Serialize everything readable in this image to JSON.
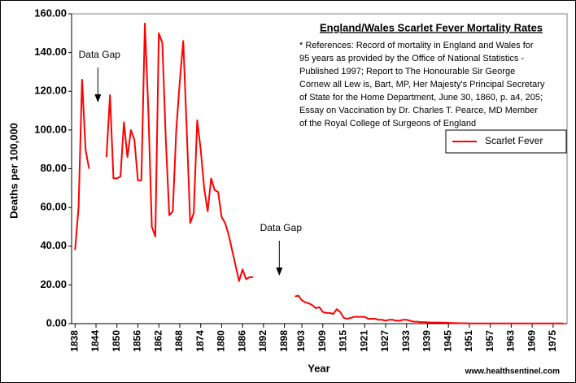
{
  "chart_data": {
    "type": "line",
    "title": "England/Wales Scarlet Fever Mortality Rates",
    "references": [
      "* References: Record of mortality in England and Wales for",
      "95 years as provided by the Office of National Statistics -",
      "Published 1997; Report to The Honourable Sir George",
      "Cornew all Lew is, Bart, MP, Her Majesty's Principal Secretary",
      "of State for the Home Department, June 30, 1860, p. a4, 205;",
      "Essay on Vaccination by Dr. Charles T. Pearce, MD Member",
      "of the Royal College of Surgeons of England"
    ],
    "annotations": [
      {
        "text": "Data Gap",
        "x": 1845
      },
      {
        "text": "Data Gap",
        "x": 1897
      }
    ],
    "x_label": "Year",
    "y_label": "Deaths per 100,000",
    "source": "www.healthsentinel.com",
    "legend": "right",
    "x": [
      1838,
      1839,
      1840,
      1841,
      1842,
      1843,
      1844,
      1845,
      1846,
      1847,
      1848,
      1849,
      1850,
      1851,
      1852,
      1853,
      1854,
      1855,
      1856,
      1857,
      1858,
      1859,
      1860,
      1861,
      1862,
      1863,
      1864,
      1865,
      1866,
      1867,
      1868,
      1869,
      1870,
      1871,
      1872,
      1873,
      1874,
      1875,
      1876,
      1877,
      1878,
      1879,
      1880,
      1881,
      1882,
      1883,
      1884,
      1885,
      1886,
      1887,
      1888,
      1889,
      1890,
      1891,
      1892,
      1893,
      1894,
      1895,
      1896,
      1897,
      1898,
      1899,
      1900,
      1901,
      1902,
      1903,
      1904,
      1905,
      1906,
      1907,
      1908,
      1909,
      1910,
      1911,
      1912,
      1913,
      1914,
      1915,
      1916,
      1917,
      1918,
      1919,
      1920,
      1921,
      1922,
      1923,
      1924,
      1925,
      1926,
      1927,
      1928,
      1929,
      1930,
      1931,
      1932,
      1933,
      1934,
      1935,
      1936,
      1937,
      1938,
      1939,
      1940,
      1941,
      1942,
      1943,
      1944,
      1945,
      1946,
      1947,
      1948,
      1949,
      1950,
      1951,
      1952,
      1953,
      1954,
      1955,
      1956,
      1957,
      1958,
      1959,
      1960,
      1961,
      1962,
      1963,
      1964,
      1965,
      1966,
      1967,
      1968,
      1969,
      1970,
      1971,
      1972,
      1973,
      1974,
      1975,
      1976,
      1977,
      1978
    ],
    "series": [
      {
        "name": "Scarlet Fever",
        "color": "#ff0000",
        "values": [
          38,
          60,
          126,
          90,
          80,
          null,
          null,
          null,
          null,
          86,
          118,
          75,
          75,
          76,
          104,
          86,
          100,
          95,
          74,
          74,
          155,
          110,
          50,
          45,
          150,
          145,
          95,
          56,
          58,
          100,
          125,
          146,
          100,
          52,
          57,
          105,
          90,
          70,
          58,
          75,
          69,
          68,
          55,
          52,
          46,
          38,
          30,
          22,
          28,
          23,
          24,
          24,
          null,
          null,
          null,
          null,
          null,
          null,
          null,
          null,
          null,
          null,
          null,
          14,
          14.5,
          12,
          11,
          10.5,
          9.5,
          8,
          8.5,
          6,
          5.5,
          5.5,
          5,
          7.5,
          6,
          3,
          2.5,
          3,
          3.5,
          3.5,
          3.5,
          3.5,
          2.5,
          2.5,
          2.5,
          2,
          2,
          1.5,
          2,
          2,
          1.5,
          1.5,
          2,
          2,
          1.5,
          1,
          1,
          0.8,
          0.8,
          0.7,
          0.6,
          0.6,
          0.6,
          0.5,
          0.5,
          0.4,
          0.3,
          0.3,
          0.2,
          0.2,
          0.2,
          0.1,
          0.1,
          0.1,
          0.1,
          0.1,
          0.1,
          0.1,
          0.1,
          0.1,
          0.1,
          0.1,
          0.1,
          0.1,
          0.1,
          0.1,
          0.1,
          0.1,
          0.1,
          0.1,
          0.1,
          0.1,
          0.1,
          0.1,
          0.1,
          0.1,
          0.1,
          0.1,
          0.1
        ]
      }
    ],
    "xlim": [
      1837,
      1979
    ],
    "xticks": [
      1838,
      1844,
      1850,
      1856,
      1862,
      1868,
      1874,
      1880,
      1886,
      1892,
      1898,
      1903,
      1909,
      1915,
      1921,
      1927,
      1933,
      1939,
      1945,
      1951,
      1957,
      1963,
      1969,
      1975
    ],
    "ylim": [
      0,
      160
    ],
    "yticks": [
      {
        "value": 0,
        "label": "0.00"
      },
      {
        "value": 20,
        "label": "20.00"
      },
      {
        "value": 40,
        "label": "40.00"
      },
      {
        "value": 60,
        "label": "60.00"
      },
      {
        "value": 80,
        "label": "80.00"
      },
      {
        "value": 100,
        "label": "100.00"
      },
      {
        "value": 120,
        "label": "120.00"
      },
      {
        "value": 140,
        "label": "140.00"
      },
      {
        "value": 160,
        "label": "160.00"
      }
    ]
  }
}
